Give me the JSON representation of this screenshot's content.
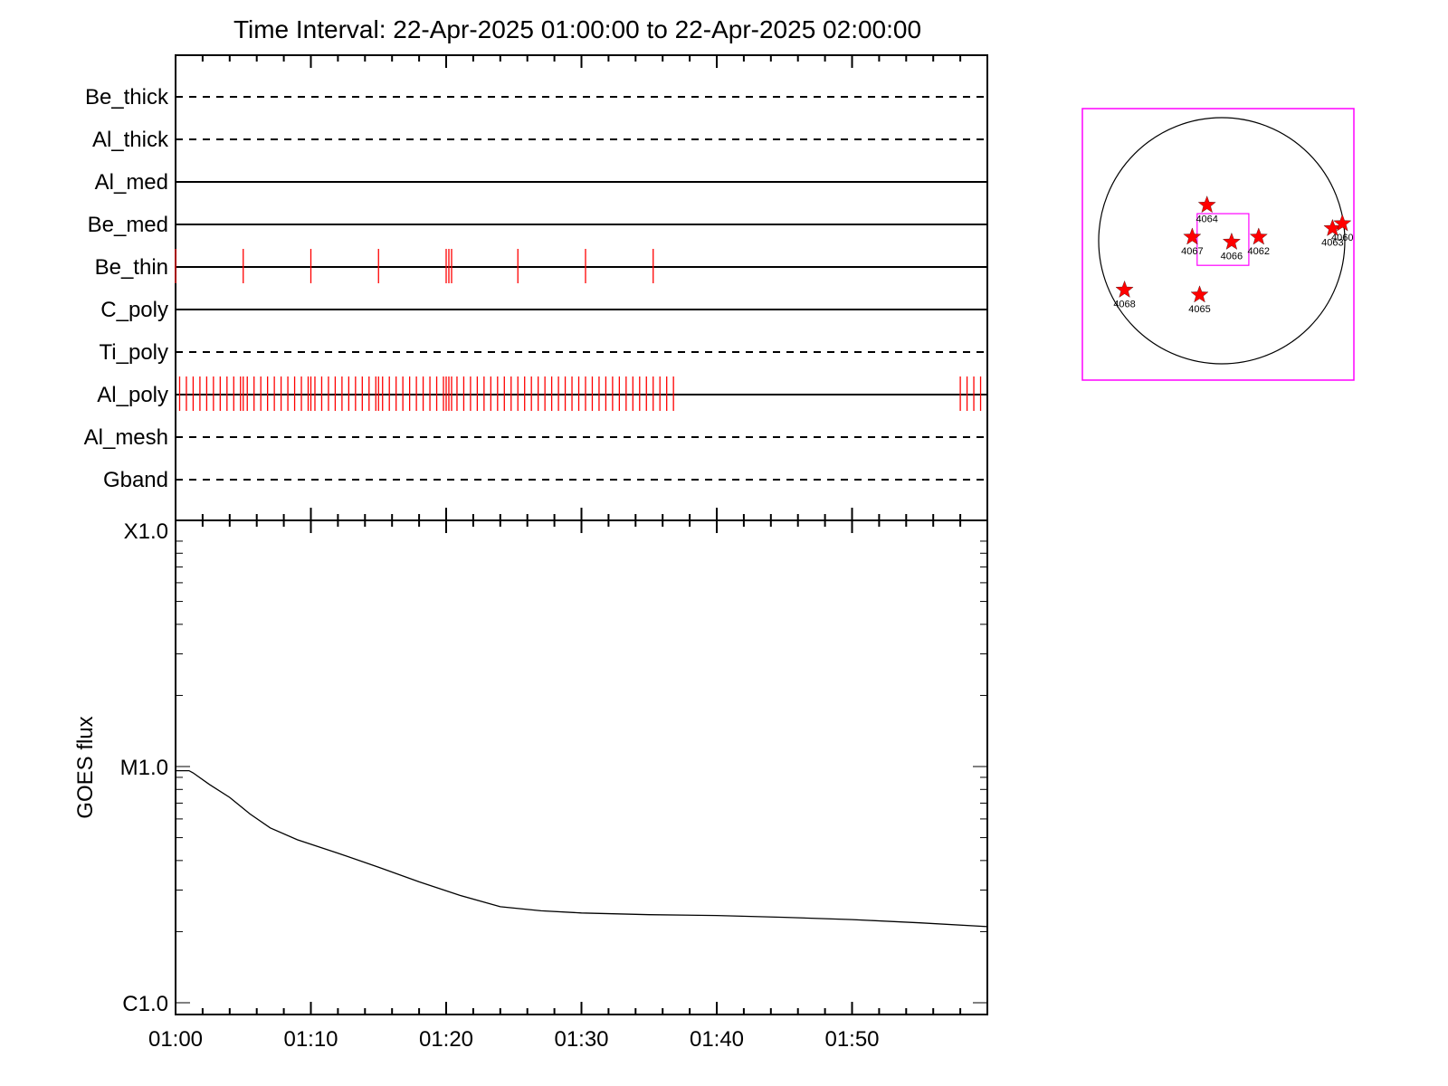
{
  "title": "Time Interval: 22-Apr-2025 01:00:00 to 22-Apr-2025 02:00:00",
  "colors": {
    "events": "#ff0000",
    "axis": "#000000",
    "fov_box": "#ff00ff",
    "stars": "#ff0000"
  },
  "chart_data": [
    {
      "type": "timeline",
      "x_range": [
        "01:00",
        "02:00"
      ],
      "rows": [
        {
          "label": "Be_thick",
          "style": "dashed",
          "events": []
        },
        {
          "label": "Al_thick",
          "style": "dashed",
          "events": []
        },
        {
          "label": "Al_med",
          "style": "solid",
          "events": []
        },
        {
          "label": "Be_med",
          "style": "solid",
          "events": []
        },
        {
          "label": "Be_thin",
          "style": "solid",
          "events": [
            0.0,
            5.0,
            10.0,
            15.0,
            20.0,
            20.2,
            20.4,
            25.3,
            30.3,
            35.3
          ]
        },
        {
          "label": "C_poly",
          "style": "solid",
          "events": []
        },
        {
          "label": "Ti_poly",
          "style": "dashed",
          "events": []
        },
        {
          "label": "Al_poly",
          "style": "solid",
          "events": [
            0.3,
            0.8,
            1.3,
            1.8,
            2.3,
            2.8,
            3.3,
            3.8,
            4.3,
            4.8,
            5.0,
            5.3,
            5.8,
            6.3,
            6.8,
            7.3,
            7.8,
            8.3,
            8.8,
            9.3,
            9.8,
            10.0,
            10.3,
            10.8,
            11.3,
            11.8,
            12.3,
            12.8,
            13.3,
            13.8,
            14.3,
            14.8,
            15.0,
            15.3,
            15.8,
            16.3,
            16.8,
            17.3,
            17.8,
            18.3,
            18.8,
            19.3,
            19.8,
            20.0,
            20.2,
            20.4,
            20.8,
            21.3,
            21.8,
            22.3,
            22.8,
            23.3,
            23.8,
            24.3,
            24.8,
            25.3,
            25.8,
            26.3,
            26.8,
            27.3,
            27.8,
            28.3,
            28.8,
            29.3,
            29.8,
            30.3,
            30.8,
            31.3,
            31.8,
            32.3,
            32.8,
            33.3,
            33.8,
            34.3,
            34.8,
            35.3,
            35.8,
            36.3,
            36.8,
            58.0,
            58.5,
            59.0,
            59.5
          ]
        },
        {
          "label": "Al_mesh",
          "style": "dashed",
          "events": []
        },
        {
          "label": "Gband",
          "style": "dashed",
          "events": []
        }
      ]
    },
    {
      "type": "line",
      "ylabel": "GOES flux",
      "yscale": "log",
      "y_ticks": [
        {
          "label": "X1.0",
          "value": 0.0001
        },
        {
          "label": "M1.0",
          "value": 1e-05
        },
        {
          "label": "C1.0",
          "value": 1e-06
        }
      ],
      "ylim": [
        1e-06,
        0.0001
      ],
      "x_ticks": [
        "01:00",
        "01:10",
        "01:20",
        "01:30",
        "01:40",
        "01:50"
      ],
      "xlim_minutes": [
        0,
        60
      ],
      "series": [
        {
          "x": [
            0,
            1,
            1.3,
            2.5,
            4,
            5.5,
            7,
            9,
            12,
            15,
            18,
            21,
            24,
            27,
            30,
            35,
            40,
            45,
            50,
            55,
            60
          ],
          "y": [
            9.6e-06,
            9.6e-06,
            9.4e-06,
            8.4e-06,
            7.4e-06,
            6.3e-06,
            5.5e-06,
            4.9e-06,
            4.3e-06,
            3.75e-06,
            3.25e-06,
            2.85e-06,
            2.55e-06,
            2.45e-06,
            2.4e-06,
            2.36e-06,
            2.34e-06,
            2.3e-06,
            2.25e-06,
            2.18e-06,
            2.1e-06
          ]
        }
      ]
    },
    {
      "type": "scatter",
      "description_free": true,
      "x_range": [
        -1,
        1
      ],
      "y_range": [
        -1,
        1
      ],
      "fov_box": {
        "x": [
          -0.2,
          0.22
        ],
        "y": [
          -0.2,
          0.22
        ]
      },
      "points": [
        {
          "label": "4064",
          "x": -0.12,
          "y": 0.29
        },
        {
          "label": "4067",
          "x": -0.24,
          "y": 0.03
        },
        {
          "label": "4066",
          "x": 0.08,
          "y": -0.01
        },
        {
          "label": "4062",
          "x": 0.3,
          "y": 0.03
        },
        {
          "label": "4063",
          "x": 0.9,
          "y": 0.1
        },
        {
          "label": "4060",
          "x": 0.98,
          "y": 0.14
        },
        {
          "label": "4068",
          "x": -0.79,
          "y": -0.4
        },
        {
          "label": "4065",
          "x": -0.18,
          "y": -0.44
        }
      ]
    }
  ]
}
